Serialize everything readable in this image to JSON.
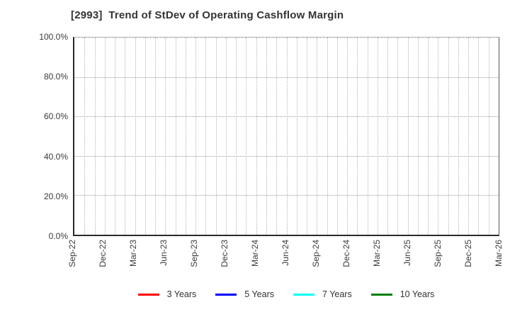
{
  "header": {
    "title": "[2993]  Trend of StDev of Operating Cashflow Margin",
    "title_color": "#333333"
  },
  "chart_data": {
    "type": "line",
    "title": "[2993]  Trend of StDev of Operating Cashflow Margin",
    "x_tick_labels": [
      "Sep-22",
      "Dec-22",
      "Mar-23",
      "Jun-23",
      "Sep-23",
      "Dec-23",
      "Mar-24",
      "Jun-24",
      "Sep-24",
      "Dec-24",
      "Mar-25",
      "Jun-25",
      "Sep-25",
      "Dec-25",
      "Mar-26"
    ],
    "x_minor_gridlines": "monthly",
    "y_ticks": [
      0,
      20,
      40,
      60,
      80,
      100
    ],
    "y_tick_labels": [
      "0.0%",
      "20.0%",
      "40.0%",
      "60.0%",
      "80.0%",
      "100.0%"
    ],
    "ylim": [
      0,
      100
    ],
    "grid": true,
    "grid_style": "dotted",
    "legend_position": "bottom-center",
    "series": [
      {
        "name": "3 Years",
        "color": "#ff0000",
        "values": []
      },
      {
        "name": "5 Years",
        "color": "#0000ff",
        "values": []
      },
      {
        "name": "7 Years",
        "color": "#00ffff",
        "values": []
      },
      {
        "name": "10 Years",
        "color": "#008000",
        "values": []
      }
    ],
    "note": "plot area is empty - no data lines drawn",
    "colors": {
      "axis_frame": "#2b2b2b",
      "grid_minor": "#b5b5b5",
      "grid_major": "#9a9a9a",
      "tick_text": "#3a3a3a"
    }
  }
}
